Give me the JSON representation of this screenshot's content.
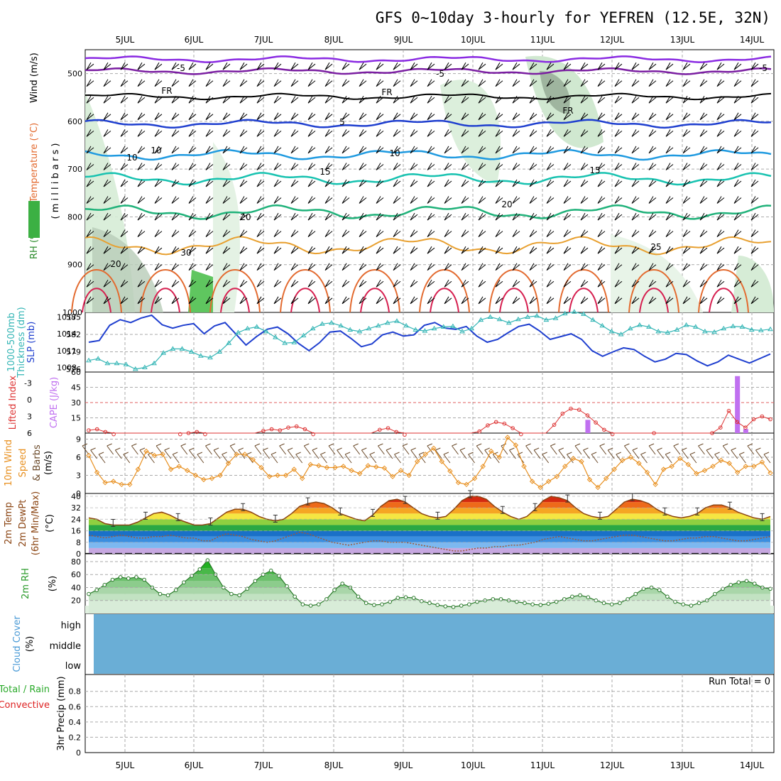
{
  "title": "GFS 0~10day 3-hourly for YEFREN (12.5E, 32N)",
  "dates": [
    "5JUL",
    "6JUL",
    "7JUL",
    "8JUL",
    "9JUL",
    "10JUL",
    "11JUL",
    "12JUL",
    "13JUL",
    "14JUL"
  ],
  "colors": {
    "grid": "#aaaaaa",
    "rh_green": "#3cb043",
    "slp": "#1f3fcf",
    "thickness": "#33b5b5",
    "cape": "#c070f0",
    "lifted": "#dd3333",
    "wind": "#e89020",
    "cloud": "#6aaed6",
    "temp_line": "#8b4513"
  },
  "panels": {
    "upper": {
      "labels": {
        "rh": "RH (%)",
        "temp": "Temperature (°C)",
        "wind": "Wind (m/s)",
        "mb": "( m i l l i b a r s )"
      },
      "yticks": [
        "500",
        "600",
        "700",
        "800",
        "900",
        "1000"
      ],
      "contour_labels": [
        "-5",
        "-5",
        "FR",
        "FR",
        "FR",
        "-5",
        "5",
        "10",
        "10",
        "15",
        "15",
        "20",
        "20",
        "25",
        "20",
        "10",
        "30"
      ]
    },
    "slp": {
      "labels": {
        "thick": "1000-500mb",
        "thick2": "Thickness (dm)",
        "slp": "SLP (mb)"
      },
      "yticks_left": [
        "585",
        "582",
        "579",
        "576"
      ],
      "yticks_right": [
        "1017",
        "1014",
        "1011",
        "1008"
      ]
    },
    "cape": {
      "labels": {
        "li": "Lifted Index",
        "cape": "CAPE (J/kg)"
      },
      "yticks_left": [
        "-3",
        "0",
        "3",
        "6"
      ],
      "yticks_right": [
        "60",
        "45",
        "30",
        "15"
      ]
    },
    "wind10": {
      "labels": {
        "a": "10m Wind",
        "b": "Speed",
        "c": "(m/s)",
        "d": "& Barbs"
      },
      "yticks": [
        "9",
        "6",
        "3",
        "0"
      ]
    },
    "temp2m": {
      "labels": {
        "a": "2m Temp",
        "b": "2m DewPt",
        "c": "(6hr Min/Max)",
        "d": "(°C)"
      },
      "yticks": [
        "40",
        "32",
        "24",
        "16",
        "8",
        "0"
      ]
    },
    "rh2m": {
      "labels": {
        "a": "2m RH",
        "b": "(%)"
      },
      "yticks": [
        "80",
        "60",
        "40",
        "20"
      ]
    },
    "cloud": {
      "labels": {
        "a": "Cloud Cover",
        "b": "(%)",
        "high": "high",
        "middle": "middle",
        "low": "low"
      }
    },
    "precip": {
      "labels": {
        "total": "Total / Rain",
        "conv": "Convective",
        "axis": "3hr Precip (mm)",
        "run": "Run Total = 0"
      },
      "yticks": [
        "0.8",
        "0.6",
        "0.4",
        "0.2",
        "0"
      ]
    }
  },
  "chart_data": [
    {
      "type": "line",
      "title": "",
      "xlabel": "",
      "ylabel": "SLP (mb)",
      "ylim": [
        1007,
        1018
      ],
      "x_labels": [
        "5JUL",
        "6JUL",
        "7JUL",
        "8JUL",
        "9JUL",
        "10JUL",
        "11JUL",
        "12JUL",
        "13JUL",
        "14JUL"
      ],
      "series": [
        {
          "name": "SLP (mb)",
          "values": [
            1012.5,
            1012.8,
            1015.5,
            1016.5,
            1016,
            1016.8,
            1017.3,
            1015.6,
            1015,
            1015.5,
            1015.8,
            1014,
            1015.4,
            1016,
            1014,
            1012,
            1013.5,
            1014.8,
            1015.2,
            1014,
            1012.3,
            1011,
            1012.4,
            1014.3,
            1014.5,
            1013.2,
            1011.7,
            1012.2,
            1013.8,
            1014.3,
            1013.6,
            1013.8,
            1015.5,
            1016,
            1015,
            1014.8,
            1015.3,
            1013.6,
            1012.5,
            1013,
            1014.2,
            1015.3,
            1015.7,
            1014.5,
            1013,
            1013.5,
            1014,
            1013,
            1011,
            1010,
            1010.8,
            1011.5,
            1011.2,
            1010,
            1009,
            1009.5,
            1010.5,
            1010.3,
            1009.2,
            1008.3,
            1009,
            1010.2,
            1009.5,
            1008.8,
            1009.6,
            1010.4
          ]
        }
      ]
    },
    {
      "type": "line",
      "title": "",
      "ylabel": "1000-500mb Thickness (dm)",
      "ylim": [
        576,
        586
      ],
      "series": [
        {
          "name": "Thickness (dm)",
          "values": [
            577.5,
            577.8,
            577,
            577,
            576.8,
            576,
            576.3,
            577,
            578.8,
            579.5,
            579.5,
            579,
            578.3,
            578,
            579,
            580.5,
            582.3,
            583,
            583.3,
            582.5,
            581.5,
            580.5,
            580.6,
            581.8,
            583,
            583.8,
            584,
            583.5,
            582.8,
            582.5,
            583,
            583.5,
            584,
            584.3,
            583.5,
            582.8,
            582.6,
            583,
            583.3,
            583.4,
            582.5,
            583,
            584.5,
            585,
            584.6,
            584,
            584.6,
            585,
            585.2,
            584.5,
            584.8,
            585.6,
            585.9,
            585.5,
            584.5,
            583.5,
            582.5,
            582,
            583,
            583.6,
            583.3,
            582.5,
            582.3,
            582.8,
            583.6,
            583.3,
            582.5,
            582.4,
            583,
            583.4,
            583.3,
            582.8,
            582.7,
            582.9
          ]
        }
      ]
    },
    {
      "type": "bar",
      "title": "",
      "ylabel": "CAPE (J/kg)",
      "ylim": [
        0,
        60
      ],
      "series": [
        {
          "name": "CAPE",
          "values": [
            0,
            0,
            0,
            0,
            0,
            0,
            0,
            0,
            0,
            0,
            0,
            0,
            0,
            0,
            0,
            0,
            0,
            0,
            0,
            0,
            0,
            0,
            0,
            0,
            0,
            0,
            0,
            0,
            0,
            0,
            0,
            0,
            0,
            0,
            0,
            0,
            0,
            0,
            0,
            0,
            0,
            0,
            0,
            0,
            0,
            0,
            0,
            0,
            0,
            0,
            0,
            0,
            0,
            0,
            0,
            0,
            0,
            0,
            0,
            0,
            13,
            0,
            0,
            0,
            0,
            0,
            0,
            0,
            0,
            0,
            0,
            0,
            0,
            0,
            0,
            0,
            0,
            0,
            56,
            4,
            0,
            0,
            0
          ]
        }
      ]
    },
    {
      "type": "line",
      "title": "",
      "ylabel": "Lifted Index",
      "ylim": [
        -5,
        6
      ],
      "series": [
        {
          "name": "Lifted Index",
          "values": [
            5.5,
            5.3,
            5.8,
            6.2,
            6.5,
            6.5,
            6.5,
            6.5,
            6.5,
            6.5,
            6.5,
            6.2,
            6.0,
            5.8,
            6.2,
            6.5,
            6.5,
            6.5,
            6.5,
            6.5,
            6.5,
            5.6,
            5.3,
            5.5,
            5.0,
            4.8,
            5.3,
            6.2,
            6.5,
            6.5,
            6.5,
            6.5,
            6.5,
            6.5,
            6.5,
            5.4,
            5.1,
            5.8,
            6.3,
            6.5,
            6.5,
            6.5,
            6.5,
            6.5,
            6.5,
            6.5,
            6.5,
            5.7,
            4.6,
            4.0,
            4.3,
            5.1,
            6.2,
            6.5,
            6.5,
            6.5,
            4.5,
            2.5,
            1.6,
            1.8,
            2.8,
            4.1,
            5.4,
            6.2,
            6.5,
            6.5,
            6.5,
            6.5,
            6.0,
            6.5,
            6.5,
            6.5,
            6.5,
            6.5,
            6.5,
            6.0,
            5.0,
            2.0,
            4.0,
            5.0,
            3.5,
            3.0,
            3.5
          ]
        }
      ]
    },
    {
      "type": "line",
      "title": "",
      "ylabel": "10m Wind Speed (m/s)",
      "ylim": [
        0,
        10
      ],
      "series": [
        {
          "name": "10m Wind Speed",
          "values": [
            6.3,
            3.5,
            1.8,
            2.0,
            1.5,
            1.5,
            4.0,
            7.0,
            6.3,
            6.5,
            4.0,
            4.5,
            3.8,
            3.0,
            2.3,
            2.5,
            3.0,
            5.0,
            6.5,
            6.5,
            5.6,
            4.3,
            2.8,
            3.0,
            3.0,
            4.0,
            2.5,
            4.8,
            4.6,
            4.3,
            4.3,
            4.5,
            3.8,
            3.3,
            4.6,
            4.4,
            4.2,
            2.8,
            3.8,
            3.0,
            5.3,
            6.5,
            7.5,
            5.3,
            3.7,
            1.8,
            1.5,
            2.5,
            4.5,
            7.0,
            6.0,
            9.3,
            8.0,
            4.5,
            2.0,
            1.0,
            2.0,
            2.8,
            4.5,
            5.8,
            5.3,
            2.3,
            1.0,
            2.5,
            4.0,
            5.5,
            6.0,
            5.0,
            3.5,
            1.5,
            4.0,
            4.5,
            5.8,
            4.8,
            3.3,
            3.8,
            4.5,
            5.5,
            5.0,
            3.5,
            4.5,
            4.5,
            5.2,
            3.4
          ]
        }
      ]
    },
    {
      "type": "area",
      "title": "",
      "ylabel": "2m Temp (°C)",
      "ylim": [
        0,
        42
      ],
      "series": [
        {
          "name": "2m Temp",
          "values": [
            25,
            24,
            21,
            20,
            20,
            20,
            22,
            25,
            28,
            29,
            27,
            24,
            22,
            20,
            20,
            21,
            25,
            29,
            31,
            31,
            29,
            26,
            24,
            23,
            24,
            28,
            33,
            35,
            36,
            35,
            32,
            28,
            26,
            24,
            23,
            27,
            33,
            37,
            38,
            36,
            32,
            28,
            26,
            25,
            26,
            31,
            37,
            40,
            40,
            38,
            33,
            29,
            26,
            24,
            26,
            31,
            37,
            40,
            39,
            37,
            32,
            28,
            26,
            25,
            26,
            31,
            36,
            38,
            37,
            35,
            31,
            28,
            26,
            25,
            26,
            28,
            32,
            34,
            34,
            32,
            29,
            27,
            25,
            24,
            26
          ]
        },
        {
          "name": "2m DewPt",
          "values": [
            13,
            12,
            11,
            12,
            13,
            12,
            11,
            11,
            12,
            12,
            13,
            12,
            11,
            11,
            9,
            9,
            12,
            14,
            13,
            12,
            10,
            9,
            8,
            9,
            11,
            13,
            15,
            14,
            12,
            10,
            8,
            7,
            6,
            7,
            8,
            9,
            9,
            8,
            8,
            8,
            7,
            6,
            5,
            4,
            3,
            2,
            2,
            3,
            4,
            4,
            5,
            5,
            6,
            6,
            7,
            8,
            10,
            11,
            12,
            11,
            10,
            9,
            9,
            10,
            11,
            12,
            13,
            13,
            12,
            11,
            10,
            9,
            9,
            10,
            11,
            11,
            12,
            12,
            11,
            10,
            9,
            9,
            10,
            11,
            12
          ]
        }
      ]
    },
    {
      "type": "area",
      "title": "",
      "ylabel": "2m RH (%)",
      "ylim": [
        0,
        90
      ],
      "series": [
        {
          "name": "2m RH",
          "values": [
            30,
            36,
            44,
            52,
            56,
            54,
            56,
            52,
            40,
            30,
            28,
            36,
            48,
            58,
            68,
            82,
            60,
            40,
            30,
            28,
            38,
            50,
            60,
            66,
            58,
            42,
            26,
            14,
            12,
            14,
            22,
            36,
            46,
            40,
            26,
            16,
            13,
            14,
            18,
            24,
            25,
            24,
            19,
            16,
            13,
            11,
            10,
            12,
            14,
            18,
            20,
            22,
            22,
            20,
            18,
            16,
            14,
            13,
            15,
            18,
            22,
            26,
            28,
            25,
            20,
            16,
            14,
            16,
            22,
            30,
            38,
            40,
            36,
            26,
            18,
            14,
            12,
            16,
            20,
            30,
            38,
            44,
            48,
            50,
            46,
            40,
            38
          ]
        }
      ]
    },
    {
      "type": "bar",
      "title": "",
      "ylabel": "3hr Precip (mm)",
      "ylim": [
        0,
        1
      ],
      "series": [
        {
          "name": "Total / Rain",
          "values": [
            0,
            0,
            0,
            0,
            0,
            0,
            0,
            0,
            0,
            0
          ]
        },
        {
          "name": "Convective",
          "values": [
            0,
            0,
            0,
            0,
            0,
            0,
            0,
            0,
            0,
            0
          ]
        }
      ]
    }
  ]
}
